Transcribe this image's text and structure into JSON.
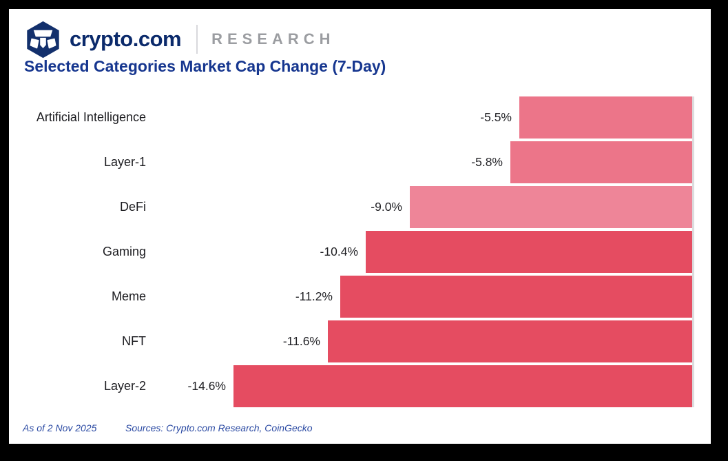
{
  "header": {
    "logo_text": "crypto.com",
    "brand_suffix": "RESEARCH",
    "logo_color": "#13306c"
  },
  "title": "Selected Categories Market Cap Change (7-Day)",
  "chart_data": {
    "type": "bar",
    "orientation": "horizontal",
    "title": "Selected Categories Market Cap Change (7-Day)",
    "categories": [
      "Artificial Intelligence",
      "Layer-1",
      "DeFi",
      "Gaming",
      "Meme",
      "NFT",
      "Layer-2"
    ],
    "values": [
      -5.5,
      -5.8,
      -9.0,
      -10.4,
      -11.2,
      -11.6,
      -14.6
    ],
    "value_labels": [
      "-5.5%",
      "-5.8%",
      "-9.0%",
      "-10.4%",
      "-11.2%",
      "-11.6%",
      "-14.6%"
    ],
    "bar_colors": [
      "#ec7589",
      "#ec7589",
      "#ee8598",
      "#e54c61",
      "#e54c61",
      "#e54c61",
      "#e54c61"
    ],
    "xlabel": "",
    "ylabel": "",
    "xlim": [
      -16,
      0
    ],
    "bars_anchored_at": 0,
    "grid": false,
    "legend": false,
    "axis_line_color": "#dcdcde",
    "unit": "%"
  },
  "footer": {
    "as_of": "As of 2 Nov 2025",
    "sources": "Sources: Crypto.com Research, CoinGecko"
  },
  "colors": {
    "frame_border": "#000000",
    "canvas": "#ffffff",
    "title_blue": "#16368f",
    "logo_navy": "#0b2a6b",
    "brand_gray": "#9b9da1",
    "footer_blue": "#2b4aa3",
    "label_dark": "#1c1c20"
  }
}
